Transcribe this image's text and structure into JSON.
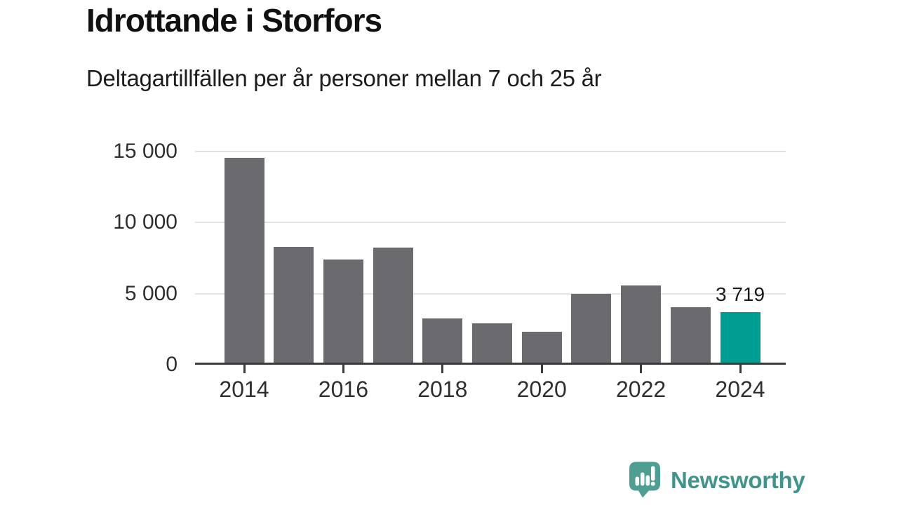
{
  "header": {
    "title": "Idrottande i Storfors",
    "subtitle": "Deltagartillfällen per år personer mellan 7 och 25 år"
  },
  "chart_data": {
    "type": "bar",
    "title": "Idrottande i Storfors",
    "subtitle": "Deltagartillfällen per år personer mellan 7 och 25 år",
    "categories": [
      "2014",
      "2015",
      "2016",
      "2017",
      "2018",
      "2019",
      "2020",
      "2021",
      "2022",
      "2023",
      "2024"
    ],
    "values": [
      14550,
      8300,
      7400,
      8250,
      3250,
      2900,
      2300,
      5000,
      5570,
      4070,
      3719
    ],
    "highlight_index": 10,
    "highlight_label": "3 719",
    "bar_color": "#6b6a6e",
    "highlight_color": "#009d93",
    "xlabel": "",
    "ylabel": "",
    "ylim": [
      0,
      15000
    ],
    "yticks": [
      0,
      5000,
      10000,
      15000
    ],
    "ytick_labels": [
      "0",
      "5 000",
      "10 000",
      "15 000"
    ],
    "xticks": {
      "labels": [
        "2014",
        "2016",
        "2018",
        "2020",
        "2022",
        "2024"
      ],
      "indices": [
        0,
        2,
        4,
        6,
        8,
        10
      ]
    },
    "grid": "horizontal",
    "legend_position": "none"
  },
  "footer": {
    "brand": "Newsworthy",
    "brand_color": "#3e958b",
    "icon_color": "#4e9e94",
    "icon": "newsworthy-logo-icon"
  }
}
